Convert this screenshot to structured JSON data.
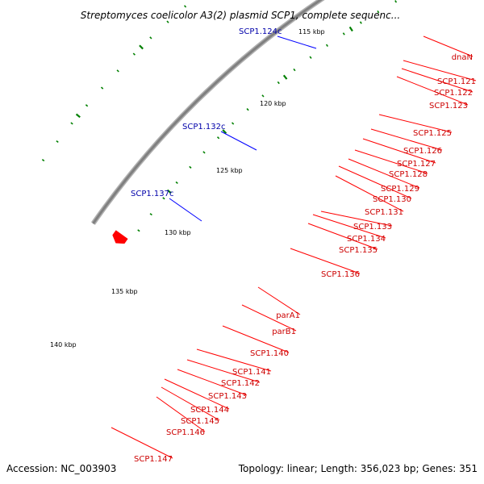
{
  "title": "Streptomyces coelicolor A3(2) plasmid SCP1, complete sequenc...",
  "footer": {
    "accession": "Accession: NC_003903",
    "summary": "Topology: linear; Length: 356,023 bp; Genes: 351"
  },
  "colors": {
    "forward_gene": "#ff0000",
    "reverse_gene": "#0000ff",
    "label_forward": "#cc0000",
    "label_reverse": "#0000aa",
    "backbone": "#808080",
    "tick": "#008000"
  },
  "scale_labels": [
    "115 kbp",
    "120 kbp",
    "125 kbp",
    "130 kbp",
    "135 kbp",
    "140 kbp"
  ],
  "reverse_labels": [
    "SCP1.124c",
    "SCP1.132c",
    "SCP1.137c"
  ],
  "forward_labels": [
    "dnaN",
    "SCP1.121",
    "SCP1.122",
    "SCP1.123",
    "SCP1.125",
    "SCP1.126",
    "SCP1.127",
    "SCP1.128",
    "SCP1.129",
    "SCP1.130",
    "SCP1.131",
    "SCP1.133",
    "SCP1.134",
    "SCP1.135",
    "SCP1.136",
    "parA1",
    "parB1",
    "SCP1.140",
    "SCP1.141",
    "SCP1.142",
    "SCP1.143",
    "SCP1.144",
    "SCP1.145",
    "SCP1.146",
    "SCP1.147"
  ]
}
